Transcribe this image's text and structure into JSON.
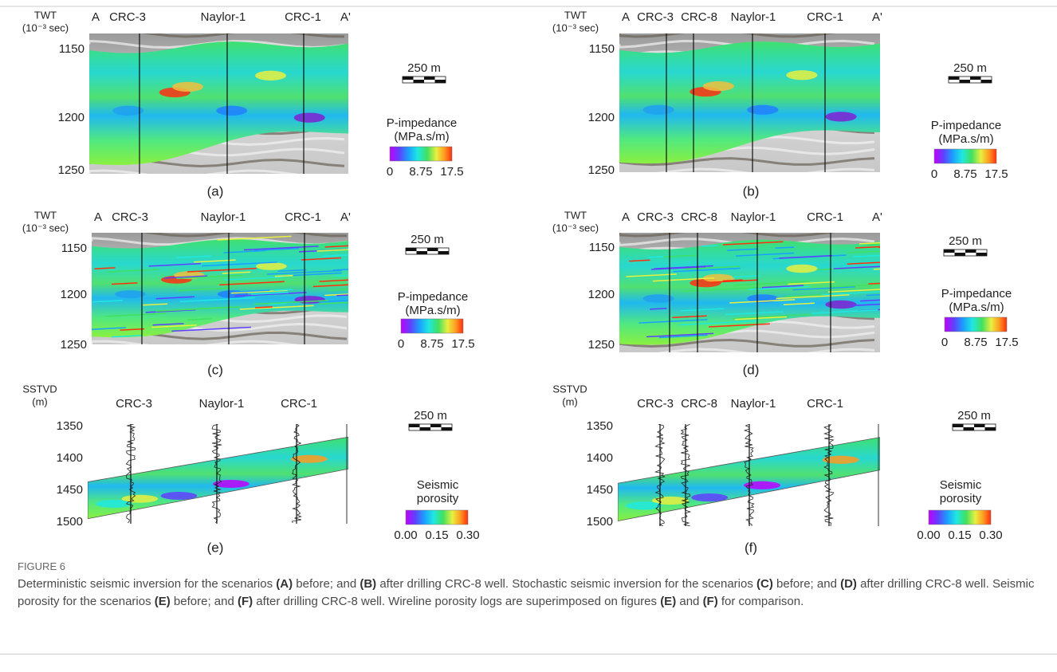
{
  "panels": [
    {
      "label": "(a)",
      "axis_title": "TWT",
      "axis_unit": "(10⁻³ sec)",
      "ticks": [
        "1150",
        "1200",
        "1250"
      ],
      "ends": [
        "A",
        "A'"
      ],
      "wells": [
        "CRC-3",
        "Naylor-1",
        "CRC-1"
      ],
      "scale_bar": "250 m",
      "colorbar": {
        "title": [
          "P-impedance",
          "(MPa.s/m)"
        ],
        "ticks": [
          "0",
          "8.75",
          "17.5"
        ]
      }
    },
    {
      "label": "(b)",
      "axis_title": "TWT",
      "axis_unit": "(10⁻³ sec)",
      "ticks": [
        "1150",
        "1200",
        "1250"
      ],
      "ends": [
        "A",
        "A'"
      ],
      "wells": [
        "CRC-3",
        "CRC-8",
        "Naylor-1",
        "CRC-1"
      ],
      "scale_bar": "250 m",
      "colorbar": {
        "title": [
          "P-impedance",
          "(MPa.s/m)"
        ],
        "ticks": [
          "0",
          "8.75",
          "17.5"
        ]
      }
    },
    {
      "label": "(c)",
      "axis_title": "TWT",
      "axis_unit": "(10⁻³ sec)",
      "ticks": [
        "1150",
        "1200",
        "1250"
      ],
      "ends": [
        "A",
        "A'"
      ],
      "wells": [
        "CRC-3",
        "Naylor-1",
        "CRC-1"
      ],
      "scale_bar": "250 m",
      "colorbar": {
        "title": [
          "P-impedance",
          "(MPa.s/m)"
        ],
        "ticks": [
          "0",
          "8.75",
          "17.5"
        ]
      }
    },
    {
      "label": "(d)",
      "axis_title": "TWT",
      "axis_unit": "(10⁻³ sec)",
      "ticks": [
        "1150",
        "1200",
        "1250"
      ],
      "ends": [
        "A",
        "A'"
      ],
      "wells": [
        "CRC-3",
        "CRC-8",
        "Naylor-1",
        "CRC-1"
      ],
      "scale_bar": "250 m",
      "colorbar": {
        "title": [
          "P-impedance",
          "(MPa.s/m)"
        ],
        "ticks": [
          "0",
          "8.75",
          "17.5"
        ]
      }
    },
    {
      "label": "(e)",
      "axis_title": "SSTVD",
      "axis_unit": "(m)",
      "ticks": [
        "1350",
        "1400",
        "1450",
        "1500"
      ],
      "wells": [
        "CRC-3",
        "Naylor-1",
        "CRC-1"
      ],
      "scale_bar": "250 m",
      "colorbar": {
        "title": [
          "Seismic",
          "porosity"
        ],
        "ticks": [
          "0.00",
          "0.15",
          "0.30"
        ]
      }
    },
    {
      "label": "(f)",
      "axis_title": "SSTVD",
      "axis_unit": "(m)",
      "ticks": [
        "1350",
        "1400",
        "1450",
        "1500"
      ],
      "wells": [
        "CRC-3",
        "CRC-8",
        "Naylor-1",
        "CRC-1"
      ],
      "scale_bar": "250 m",
      "colorbar": {
        "title": [
          "Seismic",
          "porosity"
        ],
        "ticks": [
          "0.00",
          "0.15",
          "0.30"
        ]
      }
    }
  ],
  "caption": {
    "heading": "FIGURE 6",
    "runs": [
      "Deterministic seismic inversion for the scenarios ",
      "(A)",
      " before; and ",
      "(B)",
      " after drilling CRC-8 well. Stochastic seismic inversion for the scenarios ",
      "(C)",
      " before; and ",
      "(D)",
      " after drilling CRC-8 well. Seismic porosity for the scenarios ",
      "(E)",
      " before; and ",
      "(F)",
      " after drilling CRC-8 well. Wireline porosity logs are superimposed on figures ",
      "(E)",
      " and ",
      "(F)",
      " for comparison."
    ]
  }
}
